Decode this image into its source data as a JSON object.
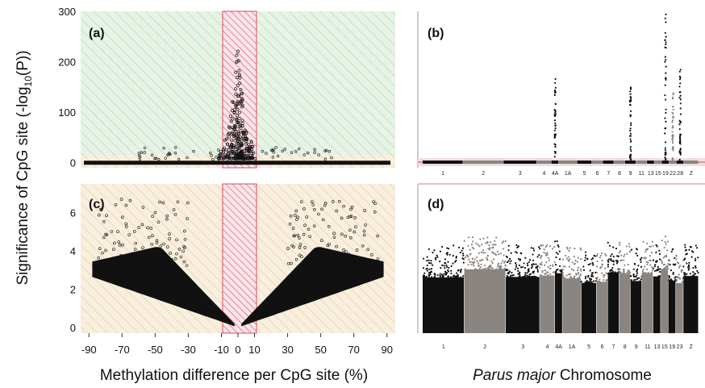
{
  "figure": {
    "ylabel_main": "Significance of CpG site (-log",
    "ylabel_sub": "10",
    "ylabel_end": "(P))",
    "xlabel_left": "Methylation difference per CpG site (%)",
    "xlabel_right_italic": "Parus major",
    "xlabel_right_rest": " Chromosome"
  },
  "colors": {
    "top_panel_bg": "#e7f3e6",
    "bottom_panel_bg": "#f8efde",
    "hatch_green": "#b8d8b8",
    "hatch_orange": "#e8cfa8",
    "central_band": "#d94a6a",
    "points": "#111111",
    "manhattan_alt": "#8a8580"
  },
  "chart_data": [
    {
      "panel": "(a)",
      "type": "scatter",
      "x_range": [
        -95,
        95
      ],
      "ylim": [
        -10,
        300
      ],
      "yticks": [
        0,
        100,
        200,
        300
      ],
      "highlight_band_x": [
        -10,
        10
      ],
      "threshold_y": 5
    },
    {
      "panel": "(b)",
      "type": "scatter",
      "ylim": [
        -10,
        300
      ],
      "chromosomes": [
        "1",
        "2",
        "3",
        "4",
        "4A",
        "1A",
        "5",
        "6",
        "7",
        "8",
        "9",
        "11",
        "13",
        "15",
        "19",
        "22",
        "28",
        "Z"
      ],
      "chromosome_widths": [
        11,
        11,
        9,
        4,
        2,
        5,
        4,
        3,
        3,
        3,
        3,
        3,
        2,
        2,
        2,
        2,
        2,
        4
      ],
      "peaks": [
        {
          "chromosome": "4A",
          "value": 185
        },
        {
          "chromosome": "9",
          "value": 150
        },
        {
          "chromosome": "19",
          "value": 300
        },
        {
          "chromosome": "22",
          "value": 140
        },
        {
          "chromosome": "28",
          "value": 200
        }
      ]
    },
    {
      "panel": "(c)",
      "type": "scatter",
      "xticks": [
        -90,
        -70,
        -50,
        -30,
        -10,
        0,
        10,
        30,
        50,
        70,
        90
      ],
      "x_range": [
        -95,
        95
      ],
      "ylim": [
        -0.3,
        7.5
      ],
      "yticks": [
        0,
        2,
        4,
        6
      ],
      "highlight_band_x": [
        -10,
        10
      ]
    },
    {
      "panel": "(d)",
      "type": "scatter",
      "ylim": [
        -0.3,
        7.5
      ],
      "chromosomes": [
        "1",
        "2",
        "3",
        "4",
        "4A",
        "1A",
        "5",
        "6",
        "7",
        "8",
        "9",
        "11",
        "13",
        "15",
        "19",
        "23",
        "Z"
      ],
      "chromosome_widths": [
        11,
        11,
        9,
        4,
        2,
        5,
        4,
        3,
        3,
        3,
        3,
        3,
        2,
        2,
        2,
        2,
        4
      ]
    }
  ]
}
